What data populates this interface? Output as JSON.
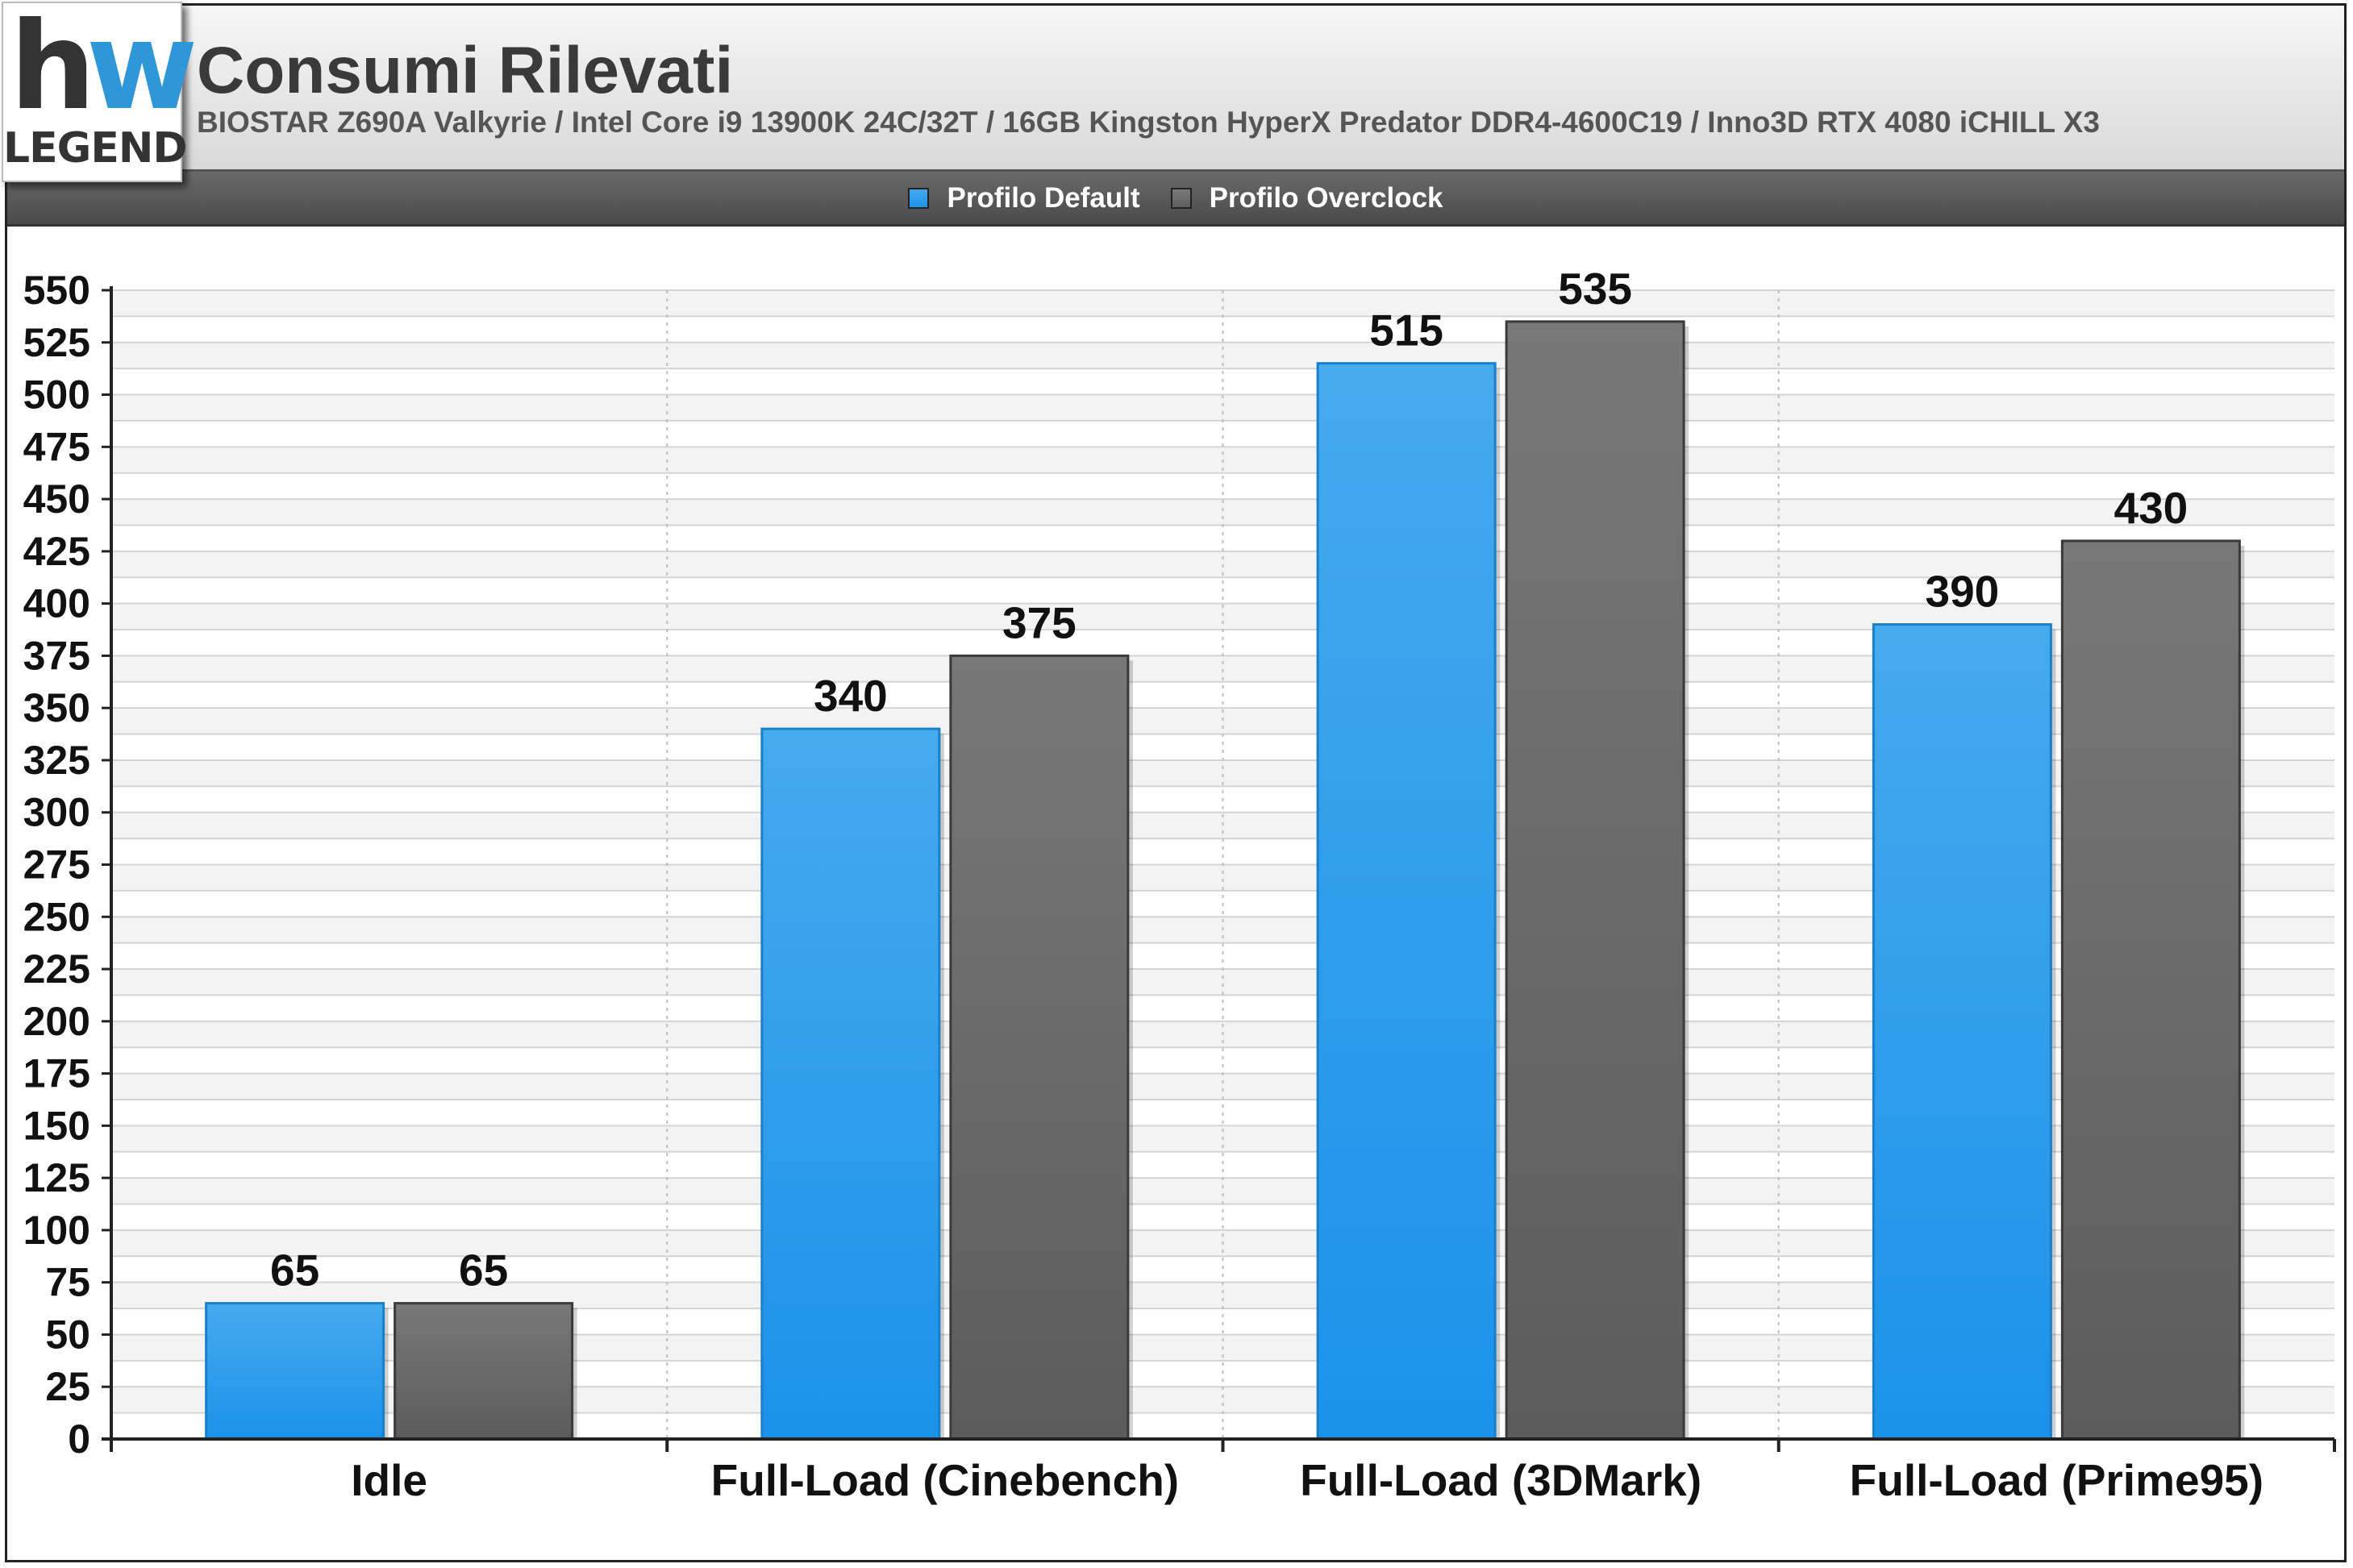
{
  "header": {
    "title": "Consumi Rilevati",
    "subtitle": "BIOSTAR Z690A Valkyrie / Intel Core i9 13900K 24C/32T / 16GB Kingston HyperX Predator DDR4-4600C19 / Inno3D RTX 4080 iCHILL X3",
    "logo_text": "LEGEND"
  },
  "legend": [
    {
      "label": "Profilo Default",
      "color": "#2a9bec"
    },
    {
      "label": "Profilo Overclock",
      "color": "#6b6b6b"
    }
  ],
  "chart_data": {
    "type": "bar",
    "title": "Consumi Rilevati",
    "categories": [
      "Idle",
      "Full-Load (Cinebench)",
      "Full-Load (3DMark)",
      "Full-Load (Prime95)"
    ],
    "series": [
      {
        "name": "Profilo Default",
        "values": [
          65,
          340,
          515,
          390
        ],
        "color": "#2a9bec"
      },
      {
        "name": "Profilo Overclock",
        "values": [
          65,
          375,
          535,
          430
        ],
        "color": "#6b6b6b"
      }
    ],
    "ylim": [
      0,
      550
    ],
    "yticks": [
      0,
      25,
      50,
      75,
      100,
      125,
      150,
      175,
      200,
      225,
      250,
      275,
      300,
      325,
      350,
      375,
      400,
      425,
      450,
      475,
      500,
      525,
      550
    ],
    "grid": true,
    "legend_position": "top"
  }
}
